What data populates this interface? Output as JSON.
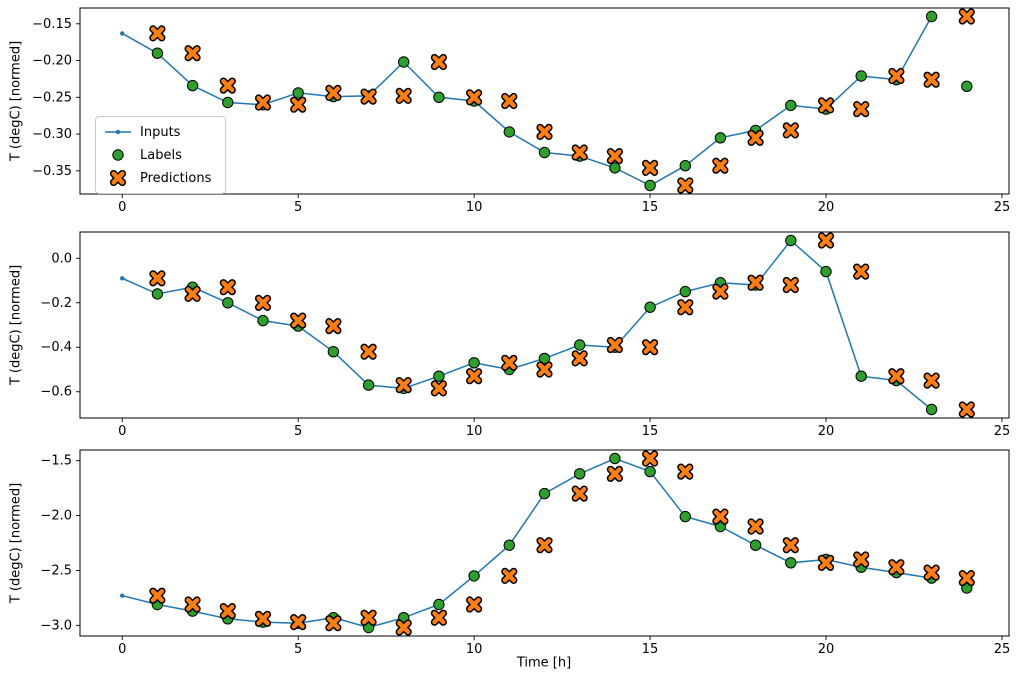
{
  "figure": {
    "xlabel": "Time [h]",
    "ylabel": "T (degC) [normed]",
    "background": "#ffffff"
  },
  "legend": {
    "subplot": 1,
    "loc": "center left",
    "items": [
      {
        "label": "Inputs",
        "marker": "line-dot",
        "color": "#1f77b4"
      },
      {
        "label": "Labels",
        "marker": "circle",
        "color": "#2ca02c",
        "edge_color": "#000000"
      },
      {
        "label": "Predictions",
        "marker": "x",
        "color": "#ff7f0e",
        "edge_color": "#000000"
      }
    ]
  },
  "chart_data": [
    {
      "type": "line",
      "title": "",
      "xlabel": "",
      "ylabel": "T (degC) [normed]",
      "xlim": [
        -1.2,
        25.2
      ],
      "ylim": [
        -0.3815,
        -0.1285
      ],
      "grid": false,
      "xticks": {
        "values": [
          0,
          5,
          10,
          15,
          20,
          25
        ],
        "labels": [
          "0",
          "5",
          "10",
          "15",
          "20",
          "25"
        ]
      },
      "yticks": {
        "values": [
          -0.15,
          -0.2,
          -0.25,
          -0.3,
          -0.35
        ],
        "labels": [
          "−0.15",
          "−0.20",
          "−0.25",
          "−0.30",
          "−0.35"
        ]
      },
      "series": [
        {
          "name": "Inputs",
          "style": "line-dot",
          "color": "#1f77b4",
          "x": [
            0,
            1,
            2,
            3,
            4,
            5,
            6,
            7,
            8,
            9,
            10,
            11,
            12,
            13,
            14,
            15,
            16,
            17,
            18,
            19,
            20,
            21,
            22,
            23
          ],
          "y": [
            -0.163,
            -0.19,
            -0.234,
            -0.257,
            -0.26,
            -0.244,
            -0.249,
            -0.248,
            -0.202,
            -0.25,
            -0.255,
            -0.297,
            -0.325,
            -0.33,
            -0.346,
            -0.37,
            -0.343,
            -0.305,
            -0.295,
            -0.261,
            -0.266,
            -0.221,
            -0.226,
            -0.14
          ]
        },
        {
          "name": "Labels",
          "style": "scatter-circle",
          "color": "#2ca02c",
          "x": [
            1,
            2,
            3,
            4,
            5,
            6,
            7,
            8,
            9,
            10,
            11,
            12,
            13,
            14,
            15,
            16,
            17,
            18,
            19,
            20,
            21,
            22,
            23,
            24
          ],
          "y": [
            -0.19,
            -0.234,
            -0.257,
            -0.26,
            -0.244,
            -0.249,
            -0.248,
            -0.202,
            -0.25,
            -0.255,
            -0.297,
            -0.325,
            -0.33,
            -0.346,
            -0.37,
            -0.343,
            -0.305,
            -0.295,
            -0.261,
            -0.266,
            -0.221,
            -0.226,
            -0.14,
            -0.235
          ]
        },
        {
          "name": "Predictions",
          "style": "scatter-x",
          "color": "#ff7f0e",
          "x": [
            1,
            2,
            3,
            4,
            5,
            6,
            7,
            8,
            9,
            10,
            11,
            12,
            13,
            14,
            15,
            16,
            17,
            18,
            19,
            20,
            21,
            22,
            23,
            24
          ],
          "y": [
            -0.163,
            -0.19,
            -0.234,
            -0.257,
            -0.26,
            -0.244,
            -0.249,
            -0.248,
            -0.202,
            -0.25,
            -0.255,
            -0.297,
            -0.325,
            -0.33,
            -0.346,
            -0.37,
            -0.343,
            -0.305,
            -0.295,
            -0.261,
            -0.266,
            -0.221,
            -0.226,
            -0.14
          ]
        }
      ]
    },
    {
      "type": "line",
      "title": "",
      "xlabel": "",
      "ylabel": "T (degC) [normed]",
      "xlim": [
        -1.2,
        25.2
      ],
      "ylim": [
        -0.718,
        0.118
      ],
      "grid": false,
      "xticks": {
        "values": [
          0,
          5,
          10,
          15,
          20,
          25
        ],
        "labels": [
          "0",
          "5",
          "10",
          "15",
          "20",
          "25"
        ]
      },
      "yticks": {
        "values": [
          0.0,
          -0.2,
          -0.4,
          -0.6
        ],
        "labels": [
          "0.0",
          "−0.2",
          "−0.4",
          "−0.6"
        ]
      },
      "series": [
        {
          "name": "Inputs",
          "style": "line-dot",
          "color": "#1f77b4",
          "x": [
            0,
            1,
            2,
            3,
            4,
            5,
            6,
            7,
            8,
            9,
            10,
            11,
            12,
            13,
            14,
            15,
            16,
            17,
            18,
            19,
            20,
            21,
            22,
            23
          ],
          "y": [
            -0.09,
            -0.16,
            -0.13,
            -0.2,
            -0.28,
            -0.305,
            -0.42,
            -0.57,
            -0.585,
            -0.53,
            -0.47,
            -0.5,
            -0.45,
            -0.39,
            -0.4,
            -0.22,
            -0.15,
            -0.11,
            -0.12,
            0.08,
            -0.06,
            -0.53,
            -0.55,
            -0.68
          ]
        },
        {
          "name": "Labels",
          "style": "scatter-circle",
          "color": "#2ca02c",
          "x": [
            1,
            2,
            3,
            4,
            5,
            6,
            7,
            8,
            9,
            10,
            11,
            12,
            13,
            14,
            15,
            16,
            17,
            18,
            19,
            20,
            21,
            22,
            23,
            24
          ],
          "y": [
            -0.16,
            -0.13,
            -0.2,
            -0.28,
            -0.305,
            -0.42,
            -0.57,
            -0.585,
            -0.53,
            -0.47,
            -0.5,
            -0.45,
            -0.39,
            -0.4,
            -0.22,
            -0.15,
            -0.11,
            -0.12,
            0.08,
            -0.06,
            -0.53,
            -0.55,
            -0.68,
            -0.68
          ]
        },
        {
          "name": "Predictions",
          "style": "scatter-x",
          "color": "#ff7f0e",
          "x": [
            1,
            2,
            3,
            4,
            5,
            6,
            7,
            8,
            9,
            10,
            11,
            12,
            13,
            14,
            15,
            16,
            17,
            18,
            19,
            20,
            21,
            22,
            23,
            24
          ],
          "y": [
            -0.09,
            -0.16,
            -0.13,
            -0.2,
            -0.28,
            -0.305,
            -0.42,
            -0.57,
            -0.585,
            -0.53,
            -0.47,
            -0.5,
            -0.45,
            -0.39,
            -0.4,
            -0.22,
            -0.15,
            -0.11,
            -0.12,
            0.08,
            -0.06,
            -0.53,
            -0.55,
            -0.68
          ]
        }
      ]
    },
    {
      "type": "line",
      "title": "",
      "xlabel": "Time [h]",
      "ylabel": "T (degC) [normed]",
      "xlim": [
        -1.2,
        25.2
      ],
      "ylim": [
        -3.097,
        -1.403
      ],
      "grid": false,
      "xticks": {
        "values": [
          0,
          5,
          10,
          15,
          20,
          25
        ],
        "labels": [
          "0",
          "5",
          "10",
          "15",
          "20",
          "25"
        ]
      },
      "yticks": {
        "values": [
          -1.5,
          -2.0,
          -2.5,
          -3.0
        ],
        "labels": [
          "−1.5",
          "−2.0",
          "−2.5",
          "−3.0"
        ]
      },
      "series": [
        {
          "name": "Inputs",
          "style": "line-dot",
          "color": "#1f77b4",
          "x": [
            0,
            1,
            2,
            3,
            4,
            5,
            6,
            7,
            8,
            9,
            10,
            11,
            12,
            13,
            14,
            15,
            16,
            17,
            18,
            19,
            20,
            21,
            22,
            23
          ],
          "y": [
            -2.73,
            -2.81,
            -2.87,
            -2.94,
            -2.97,
            -2.98,
            -2.93,
            -3.02,
            -2.93,
            -2.81,
            -2.55,
            -2.27,
            -1.8,
            -1.62,
            -1.48,
            -1.6,
            -2.01,
            -2.1,
            -2.27,
            -2.43,
            -2.4,
            -2.47,
            -2.52,
            -2.57
          ]
        },
        {
          "name": "Labels",
          "style": "scatter-circle",
          "color": "#2ca02c",
          "x": [
            1,
            2,
            3,
            4,
            5,
            6,
            7,
            8,
            9,
            10,
            11,
            12,
            13,
            14,
            15,
            16,
            17,
            18,
            19,
            20,
            21,
            22,
            23,
            24
          ],
          "y": [
            -2.81,
            -2.87,
            -2.94,
            -2.97,
            -2.98,
            -2.93,
            -3.02,
            -2.93,
            -2.81,
            -2.55,
            -2.27,
            -1.8,
            -1.62,
            -1.48,
            -1.6,
            -2.01,
            -2.1,
            -2.27,
            -2.43,
            -2.4,
            -2.47,
            -2.52,
            -2.57,
            -2.66
          ]
        },
        {
          "name": "Predictions",
          "style": "scatter-x",
          "color": "#ff7f0e",
          "x": [
            1,
            2,
            3,
            4,
            5,
            6,
            7,
            8,
            9,
            10,
            11,
            12,
            13,
            14,
            15,
            16,
            17,
            18,
            19,
            20,
            21,
            22,
            23,
            24
          ],
          "y": [
            -2.73,
            -2.81,
            -2.87,
            -2.94,
            -2.97,
            -2.98,
            -2.93,
            -3.02,
            -2.93,
            -2.81,
            -2.55,
            -2.27,
            -1.8,
            -1.62,
            -1.48,
            -1.6,
            -2.01,
            -2.1,
            -2.27,
            -2.43,
            -2.4,
            -2.47,
            -2.52,
            -2.57
          ]
        }
      ]
    }
  ]
}
